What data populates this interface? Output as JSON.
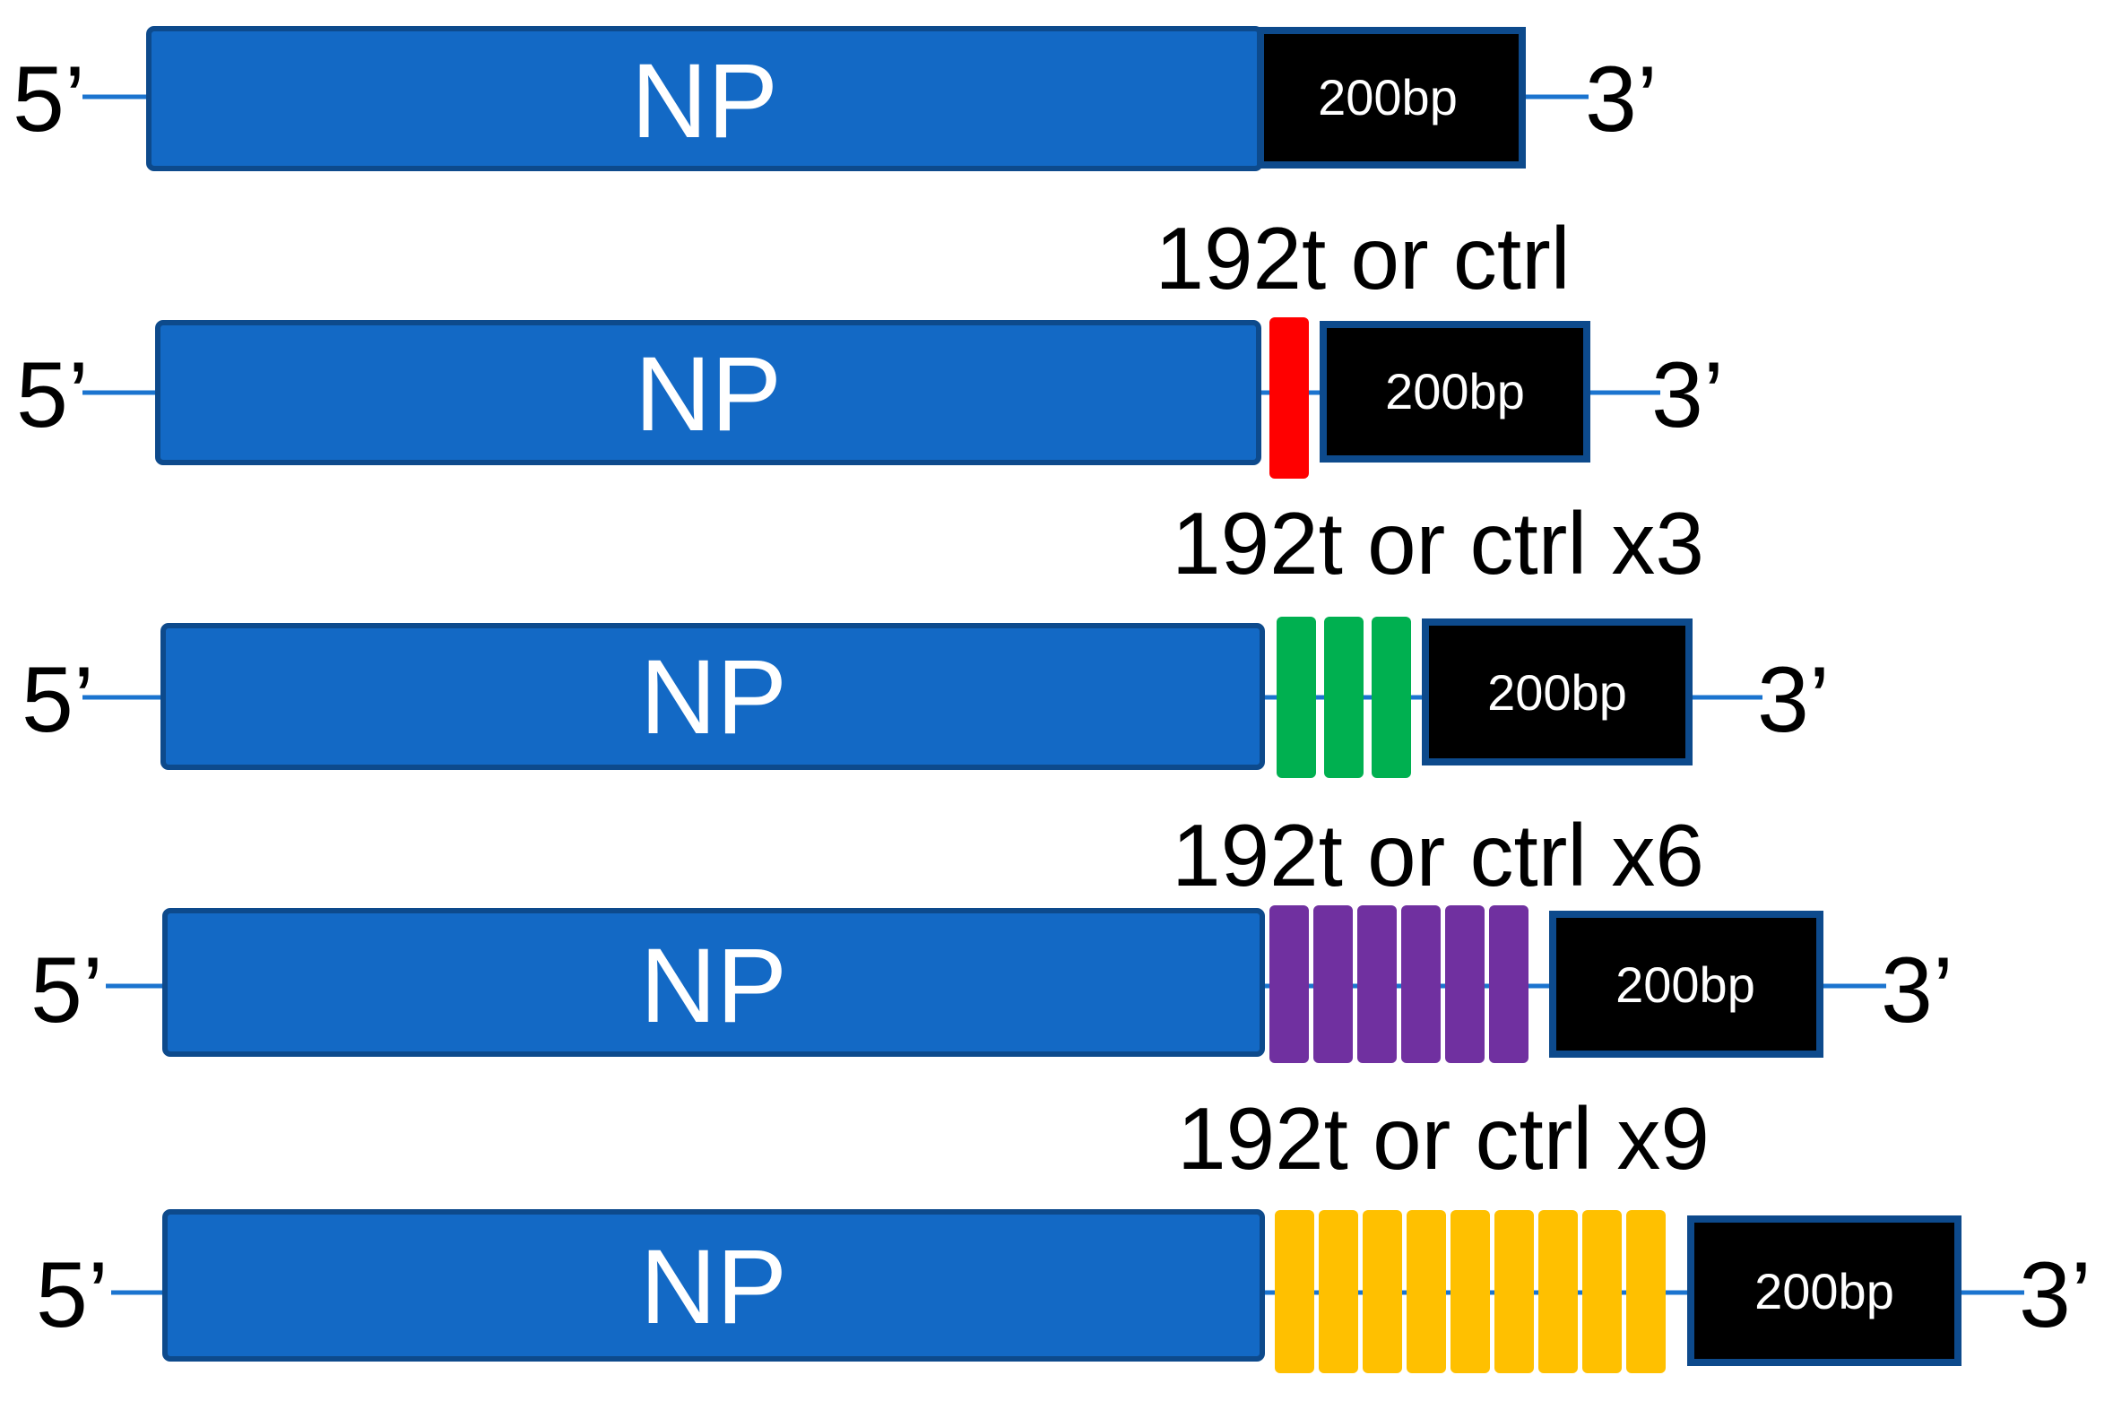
{
  "colors": {
    "np_fill": "#1369c5",
    "np_stroke": "#0d4a8c",
    "line": "#1b74cf",
    "box_fill": "#000000",
    "box_stroke": "#0d4a8c"
  },
  "constructs": [
    {
      "five_prime": "5’",
      "np_label": "NP",
      "fragment_label": "200bp",
      "three_prime": "3’",
      "insert_label": "",
      "insert_count": 0,
      "insert_color": ""
    },
    {
      "five_prime": "5’",
      "np_label": "NP",
      "fragment_label": "200bp",
      "three_prime": "3’",
      "insert_label": "192t or ctrl",
      "insert_count": 1,
      "insert_color": "#ff0000"
    },
    {
      "five_prime": "5’",
      "np_label": "NP",
      "fragment_label": "200bp",
      "three_prime": "3’",
      "insert_label": "192t or ctrl x3",
      "insert_count": 3,
      "insert_color": "#00b050"
    },
    {
      "five_prime": "5’",
      "np_label": "NP",
      "fragment_label": "200bp",
      "three_prime": "3’",
      "insert_label": "192t or ctrl x6",
      "insert_count": 6,
      "insert_color": "#7030a0"
    },
    {
      "five_prime": "5’",
      "np_label": "NP",
      "fragment_label": "200bp",
      "three_prime": "3’",
      "insert_label": "192t or ctrl x9",
      "insert_count": 9,
      "insert_color": "#ffc000"
    }
  ]
}
